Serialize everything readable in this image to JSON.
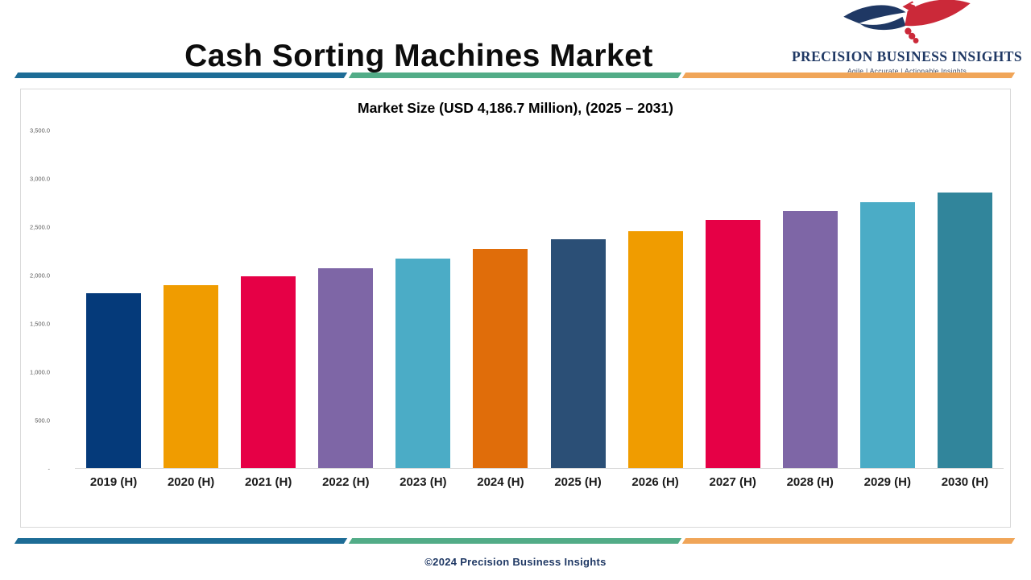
{
  "header": {
    "title": "Cash Sorting Machines Market",
    "logo": {
      "name": "PRECISION BUSINESS INSIGHTS",
      "tagline": "Agile | Accurate | Actionable Insights"
    }
  },
  "chart_data": {
    "type": "bar",
    "title": "Market Size (USD 4,186.7 Million), (2025 – 2031)",
    "categories": [
      "2019 (H)",
      "2020 (H)",
      "2021 (H)",
      "2022 (H)",
      "2023 (H)",
      "2024 (H)",
      "2025 (H)",
      "2026 (H)",
      "2027 (H)",
      "2028 (H)",
      "2029 (H)",
      "2030 (H)"
    ],
    "values": [
      1810,
      1900,
      1985,
      2075,
      2170,
      2270,
      2370,
      2460,
      2570,
      2665,
      2760,
      2860
    ],
    "bar_colors": [
      "#053a7a",
      "#f09c00",
      "#e60046",
      "#7e66a6",
      "#4bacc6",
      "#e06d0a",
      "#2b4f76",
      "#f09c00",
      "#e60046",
      "#7e66a6",
      "#4bacc6",
      "#31859b"
    ],
    "xlabel": "",
    "ylabel": "",
    "ylim": [
      0,
      3500
    ],
    "grid": false,
    "legend": null,
    "y_ticks": [
      {
        "label": "3,500.0",
        "value": 3500
      },
      {
        "label": "3,000.0",
        "value": 3000
      },
      {
        "label": "2,500.0",
        "value": 2500
      },
      {
        "label": "2,000.0",
        "value": 2000
      },
      {
        "label": "1,500.0",
        "value": 1500
      },
      {
        "label": "1,000.0",
        "value": 1000
      },
      {
        "label": "500.0",
        "value": 500
      },
      {
        "label": "-",
        "value": 0
      }
    ]
  },
  "footer": {
    "copyright": "©2024 Precision Business Insights"
  },
  "colors": {
    "divider": [
      "#1d6c96",
      "#52ac87",
      "#f0a558"
    ],
    "logo_navy": "#1f3864",
    "logo_red": "#cb2939",
    "footer_navy": "#1f3864",
    "axis_gray": "#d9d9d9"
  }
}
